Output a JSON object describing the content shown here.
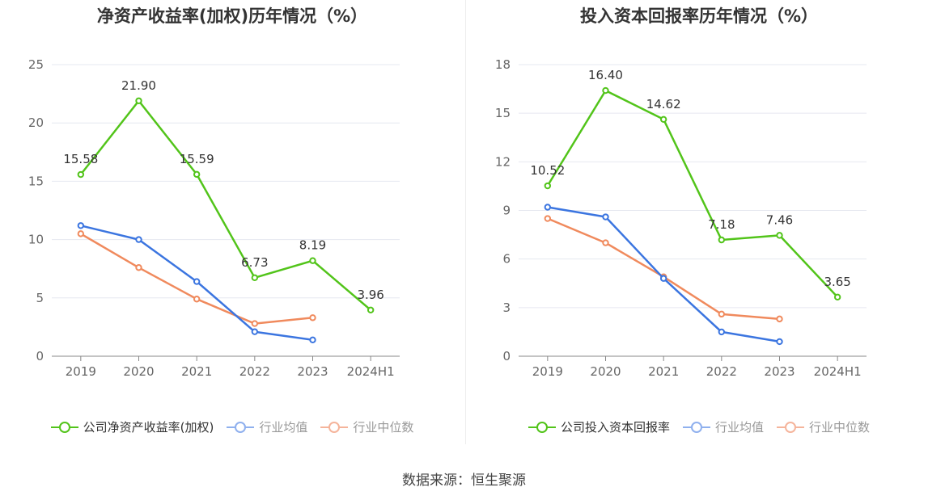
{
  "source_text": "数据来源：恒生聚源",
  "colors": {
    "company": "#52c41a",
    "industry_avg": "#3b75e0",
    "industry_median": "#f08a5d",
    "legend_industry_avg": "#8fb0ee",
    "legend_industry_median": "#f5b49b",
    "grid": "#e6e8f0",
    "axis": "#888888"
  },
  "chart_data": [
    {
      "type": "line",
      "title": "净资产收益率(加权)历年情况（%）",
      "categories": [
        "2019",
        "2020",
        "2021",
        "2022",
        "2023",
        "2024H1"
      ],
      "ylim": [
        0,
        25
      ],
      "yticks": [
        0,
        5,
        10,
        15,
        20,
        25
      ],
      "grid": true,
      "legend_position": "bottom",
      "series": [
        {
          "name": "公司净资产收益率(加权)",
          "key": "company",
          "values": [
            15.58,
            21.9,
            15.59,
            6.73,
            8.19,
            3.96
          ],
          "labels": [
            "15.58",
            "21.90",
            "15.59",
            "6.73",
            "8.19",
            "3.96"
          ]
        },
        {
          "name": "行业均值",
          "key": "industry_avg",
          "values": [
            11.2,
            10.0,
            6.4,
            2.1,
            1.4,
            null
          ]
        },
        {
          "name": "行业中位数",
          "key": "industry_median",
          "values": [
            10.5,
            7.6,
            4.9,
            2.8,
            3.3,
            null
          ]
        }
      ]
    },
    {
      "type": "line",
      "title": "投入资本回报率历年情况（%）",
      "categories": [
        "2019",
        "2020",
        "2021",
        "2022",
        "2023",
        "2024H1"
      ],
      "ylim": [
        0,
        18
      ],
      "yticks": [
        0,
        3,
        6,
        9,
        12,
        15,
        18
      ],
      "grid": true,
      "legend_position": "bottom",
      "series": [
        {
          "name": "公司投入资本回报率",
          "key": "company",
          "values": [
            10.52,
            16.4,
            14.62,
            7.18,
            7.46,
            3.65
          ],
          "labels": [
            "10.52",
            "16.40",
            "14.62",
            "7.18",
            "7.46",
            "3.65"
          ]
        },
        {
          "name": "行业均值",
          "key": "industry_avg",
          "values": [
            9.2,
            8.6,
            4.8,
            1.5,
            0.9,
            null
          ]
        },
        {
          "name": "行业中位数",
          "key": "industry_median",
          "values": [
            8.5,
            7.0,
            4.9,
            2.6,
            2.3,
            null
          ]
        }
      ]
    }
  ]
}
